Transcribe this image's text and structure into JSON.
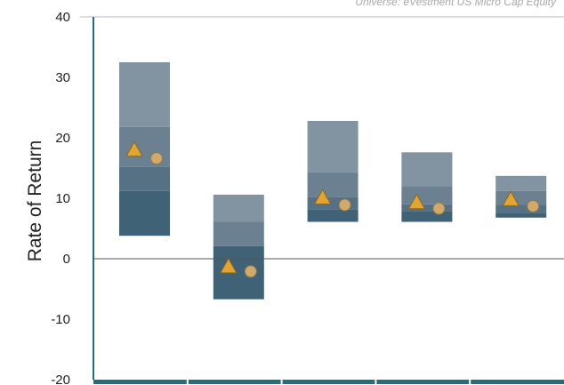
{
  "chart_data": {
    "type": "floating-bar",
    "subtitle": "Universe: eVestment US Micro Cap Equity",
    "ylabel": "Rate of Return",
    "ylim": [
      -20,
      40
    ],
    "yticks": [
      "40",
      "30",
      "20",
      "10",
      "0",
      "-10",
      "-20"
    ],
    "ytick_values": [
      40,
      30,
      20,
      10,
      0,
      -10,
      -20
    ],
    "grid": false,
    "groups": [
      {
        "p5": 3.8,
        "p25": 11.2,
        "median": 15.2,
        "p75": 21.8,
        "p95": 32.5,
        "triangle": 18.0,
        "circle": 16.6
      },
      {
        "p5": -6.7,
        "p25": 2.1,
        "median": 2.1,
        "p75": 6.1,
        "p95": 10.6,
        "triangle": -1.3,
        "circle": -2.1
      },
      {
        "p5": 6.1,
        "p25": 8.1,
        "median": 10.2,
        "p75": 14.3,
        "p95": 22.8,
        "triangle": 10.1,
        "circle": 8.9
      },
      {
        "p5": 6.1,
        "p25": 7.8,
        "median": 9.0,
        "p75": 12.0,
        "p95": 17.6,
        "triangle": 9.3,
        "circle": 8.3
      },
      {
        "p5": 6.8,
        "p25": 7.6,
        "median": 8.9,
        "p75": 11.2,
        "p95": 13.7,
        "triangle": 9.8,
        "circle": 8.7
      }
    ],
    "colors": {
      "top_band": "#8293a2",
      "upper_mid_band": "#6b8192",
      "lower_mid_band": "#557183",
      "bottom_band": "#3f6276",
      "axis": "#1f6f80",
      "zero_line": "#555555",
      "triangle": "#e5a52d",
      "triangle_stroke": "#8a6a1f",
      "circle": "#d2a967",
      "circle_stroke": "#8c7a55"
    }
  }
}
